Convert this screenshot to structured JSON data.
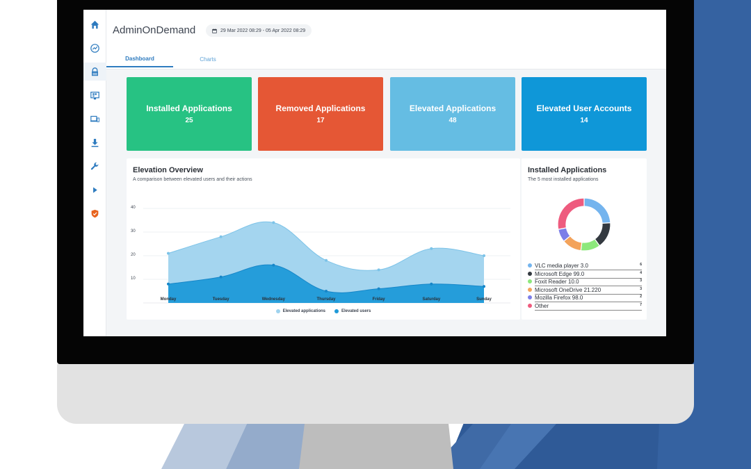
{
  "header": {
    "app_title": "AdminOnDemand",
    "date_range": "29 Mar 2022 08:29 - 05 Apr 2022 08:29"
  },
  "tabs": [
    {
      "label": "Dashboard",
      "active": true
    },
    {
      "label": "Charts",
      "active": false
    }
  ],
  "sidebar": {
    "items": [
      {
        "icon": "home-icon"
      },
      {
        "icon": "trend-icon"
      },
      {
        "icon": "lock-icon",
        "active": true
      },
      {
        "icon": "monitor-icon"
      },
      {
        "icon": "devices-icon"
      },
      {
        "icon": "download-icon"
      },
      {
        "icon": "wrench-icon"
      },
      {
        "icon": "play-icon"
      },
      {
        "icon": "shield-icon"
      }
    ]
  },
  "cards": [
    {
      "label": "Installed Applications",
      "value": "25",
      "color": "#27c283"
    },
    {
      "label": "Removed Applications",
      "value": "17",
      "color": "#e55735"
    },
    {
      "label": "Elevated Applications",
      "value": "48",
      "color": "#65bde3"
    },
    {
      "label": "Elevated User Accounts",
      "value": "14",
      "color": "#0f97d8"
    }
  ],
  "elevation": {
    "title": "Elevation Overview",
    "subtitle": "A comparison between elevated users and their actions"
  },
  "installed": {
    "title": "Installed Applications",
    "subtitle": "The 5 most installed applications"
  },
  "chart_data": [
    {
      "type": "area",
      "categories": [
        "Monday",
        "Tuesday",
        "Wednesday",
        "Thursday",
        "Friday",
        "Saturday",
        "Sunday"
      ],
      "series": [
        {
          "name": "Elevated applications",
          "values": [
            21,
            28,
            34,
            18,
            14,
            23,
            20
          ],
          "color": "#9fd3ee"
        },
        {
          "name": "Elevated users",
          "values": [
            8,
            11,
            16,
            5,
            6,
            8,
            7
          ],
          "color": "#1f9ad8"
        }
      ],
      "yticks": [
        "10",
        "20",
        "30",
        "40"
      ],
      "ylim": [
        0,
        40
      ],
      "grid": true,
      "legend": "bottom"
    },
    {
      "type": "pie",
      "donut": true,
      "labels": [
        "VLC media player 3.0",
        "Microsoft Edge 99.0",
        "Foxit Reader 10.0",
        "Microsoft OneDrive 21.220",
        "Mozilla Firefox 98.0",
        "Other"
      ],
      "values": [
        6,
        4,
        3,
        3,
        2,
        7
      ],
      "colors": [
        "#74b4ee",
        "#333940",
        "#8de87c",
        "#f3a35b",
        "#7c7ee8",
        "#ee5b7e"
      ],
      "legend": "bottom"
    }
  ]
}
